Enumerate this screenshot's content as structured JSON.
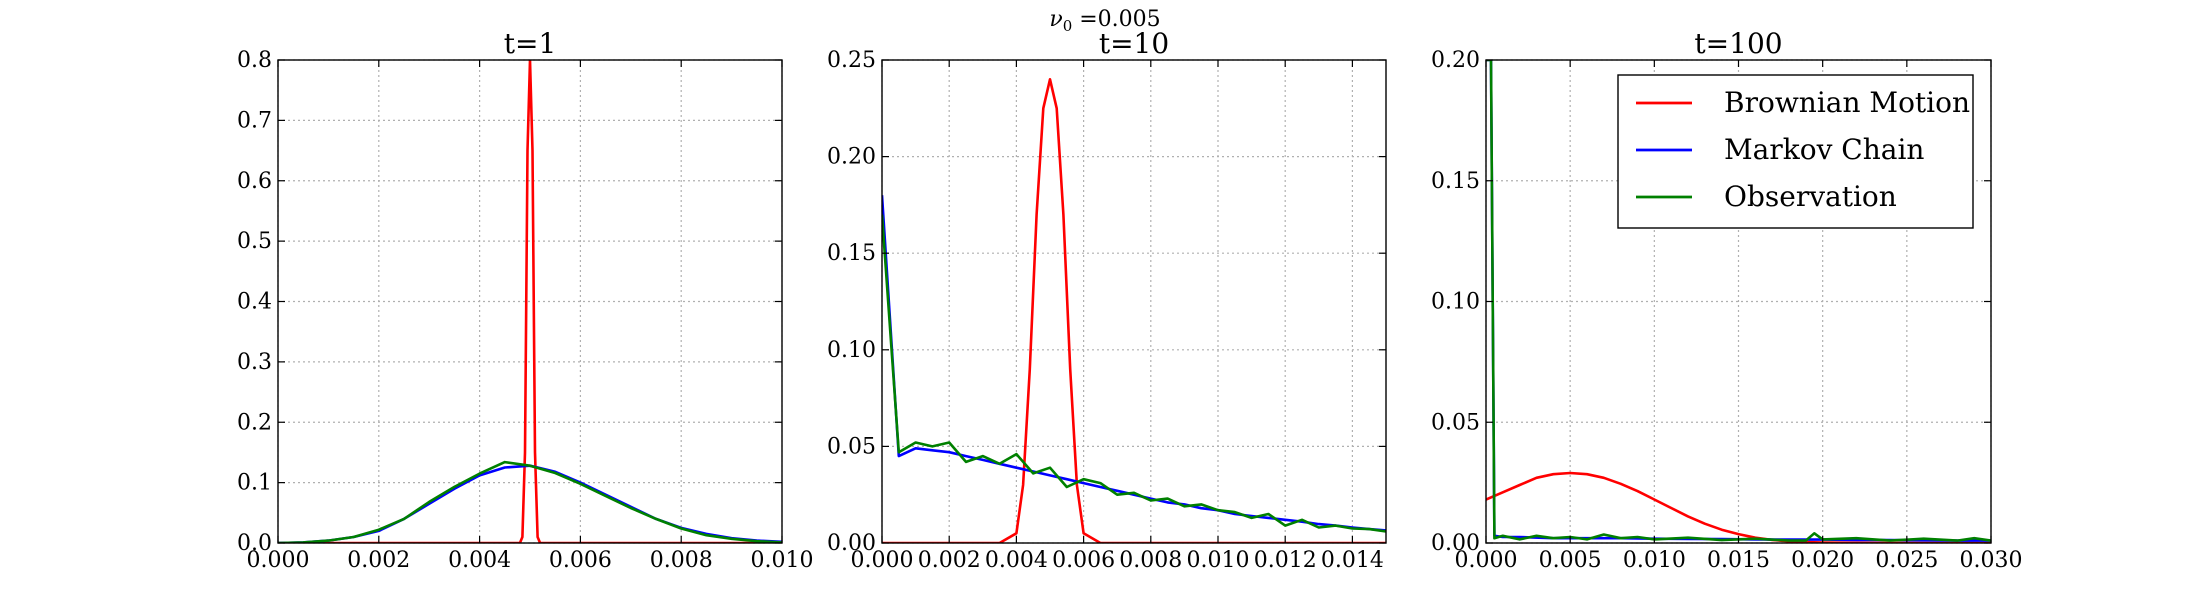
{
  "figure": {
    "suptitle_symbol": "ν",
    "suptitle_subscript": "0",
    "suptitle_value": " =0.005"
  },
  "legend": {
    "placement": "top-right of third panel"
  },
  "chart_data": [
    {
      "type": "line",
      "title": "t=1",
      "xlim": [
        0.0,
        0.01
      ],
      "ylim": [
        0.0,
        0.8
      ],
      "x_ticks": [
        "0.000",
        "0.002",
        "0.004",
        "0.006",
        "0.008",
        "0.010"
      ],
      "y_ticks": [
        "0.0",
        "0.1",
        "0.2",
        "0.3",
        "0.4",
        "0.5",
        "0.6",
        "0.7",
        "0.8"
      ],
      "grid": true,
      "series": [
        {
          "name": "Brownian Motion",
          "color": "#ff0000",
          "x": [
            0.0,
            0.0048,
            0.00485,
            0.0049,
            0.00495,
            0.005,
            0.00505,
            0.0051,
            0.00515,
            0.0052,
            0.01
          ],
          "y": [
            0.0,
            0.0,
            0.01,
            0.15,
            0.65,
            0.8,
            0.65,
            0.15,
            0.01,
            0.0,
            0.0
          ]
        },
        {
          "name": "Markov Chain",
          "color": "#0000ff",
          "x": [
            0.0,
            0.0005,
            0.001,
            0.0015,
            0.002,
            0.0025,
            0.003,
            0.0035,
            0.004,
            0.0045,
            0.005,
            0.0055,
            0.006,
            0.0065,
            0.007,
            0.0075,
            0.008,
            0.0085,
            0.009,
            0.0095,
            0.01
          ],
          "y": [
            0.0,
            0.001,
            0.004,
            0.01,
            0.02,
            0.04,
            0.065,
            0.09,
            0.112,
            0.125,
            0.128,
            0.118,
            0.1,
            0.08,
            0.06,
            0.04,
            0.025,
            0.015,
            0.008,
            0.004,
            0.002
          ]
        },
        {
          "name": "Observation",
          "color": "#008000",
          "x": [
            0.0,
            0.0005,
            0.001,
            0.0015,
            0.002,
            0.0025,
            0.003,
            0.0035,
            0.004,
            0.0045,
            0.005,
            0.0055,
            0.006,
            0.0065,
            0.007,
            0.0075,
            0.008,
            0.0085,
            0.009,
            0.0095,
            0.01
          ],
          "y": [
            0.0,
            0.001,
            0.004,
            0.01,
            0.022,
            0.04,
            0.068,
            0.093,
            0.115,
            0.134,
            0.128,
            0.116,
            0.098,
            0.078,
            0.058,
            0.04,
            0.024,
            0.013,
            0.007,
            0.003,
            0.001
          ]
        }
      ]
    },
    {
      "type": "line",
      "title": "t=10",
      "xlim": [
        0.0,
        0.015
      ],
      "ylim": [
        0.0,
        0.25
      ],
      "x_ticks": [
        "0.000",
        "0.002",
        "0.004",
        "0.006",
        "0.008",
        "0.010",
        "0.012",
        "0.014"
      ],
      "y_ticks": [
        "0.00",
        "0.05",
        "0.10",
        "0.15",
        "0.20",
        "0.25"
      ],
      "grid": true,
      "series": [
        {
          "name": "Brownian Motion",
          "color": "#ff0000",
          "x": [
            0.0,
            0.0035,
            0.004,
            0.0042,
            0.0044,
            0.0046,
            0.0048,
            0.005,
            0.0052,
            0.0054,
            0.0056,
            0.0058,
            0.006,
            0.0065,
            0.015
          ],
          "y": [
            0.0,
            0.0,
            0.005,
            0.03,
            0.09,
            0.17,
            0.225,
            0.24,
            0.225,
            0.17,
            0.09,
            0.03,
            0.005,
            0.0,
            0.0
          ]
        },
        {
          "name": "Markov Chain",
          "color": "#0000ff",
          "x": [
            0.0,
            0.0005,
            0.001,
            0.0015,
            0.002,
            0.0025,
            0.003,
            0.0035,
            0.004,
            0.0045,
            0.005,
            0.0055,
            0.006,
            0.0065,
            0.007,
            0.0075,
            0.008,
            0.0085,
            0.009,
            0.0095,
            0.01,
            0.0105,
            0.011,
            0.0115,
            0.012,
            0.0125,
            0.013,
            0.0135,
            0.014,
            0.0145,
            0.015
          ],
          "y": [
            0.18,
            0.045,
            0.049,
            0.048,
            0.047,
            0.045,
            0.043,
            0.041,
            0.039,
            0.037,
            0.035,
            0.033,
            0.031,
            0.029,
            0.027,
            0.025,
            0.023,
            0.021,
            0.02,
            0.018,
            0.017,
            0.015,
            0.014,
            0.013,
            0.012,
            0.011,
            0.0098,
            0.009,
            0.008,
            0.0072,
            0.0065
          ]
        },
        {
          "name": "Observation",
          "color": "#008000",
          "x": [
            0.0,
            0.0005,
            0.001,
            0.0015,
            0.002,
            0.0025,
            0.003,
            0.0035,
            0.004,
            0.0045,
            0.005,
            0.0055,
            0.006,
            0.0065,
            0.007,
            0.0075,
            0.008,
            0.0085,
            0.009,
            0.0095,
            0.01,
            0.0105,
            0.011,
            0.0115,
            0.012,
            0.0125,
            0.013,
            0.0135,
            0.014,
            0.0145,
            0.015
          ],
          "y": [
            0.17,
            0.047,
            0.052,
            0.05,
            0.052,
            0.042,
            0.045,
            0.041,
            0.046,
            0.036,
            0.039,
            0.029,
            0.033,
            0.031,
            0.025,
            0.026,
            0.022,
            0.023,
            0.019,
            0.02,
            0.017,
            0.016,
            0.013,
            0.015,
            0.009,
            0.012,
            0.008,
            0.009,
            0.0075,
            0.0072,
            0.006
          ]
        }
      ]
    },
    {
      "type": "line",
      "title": "t=100",
      "xlim": [
        0.0,
        0.03
      ],
      "ylim": [
        0.0,
        0.2
      ],
      "x_ticks": [
        "0.000",
        "0.005",
        "0.010",
        "0.015",
        "0.020",
        "0.025",
        "0.030"
      ],
      "y_ticks": [
        "0.00",
        "0.05",
        "0.10",
        "0.15",
        "0.20"
      ],
      "grid": true,
      "series": [
        {
          "name": "Brownian Motion",
          "color": "#ff0000",
          "x": [
            0.0,
            0.001,
            0.002,
            0.003,
            0.004,
            0.005,
            0.006,
            0.007,
            0.008,
            0.009,
            0.01,
            0.011,
            0.012,
            0.013,
            0.014,
            0.015,
            0.016,
            0.017,
            0.018,
            0.019,
            0.02,
            0.022,
            0.024,
            0.026,
            0.028,
            0.03
          ],
          "y": [
            0.018,
            0.021,
            0.024,
            0.027,
            0.0285,
            0.029,
            0.0285,
            0.027,
            0.0245,
            0.0215,
            0.018,
            0.0145,
            0.011,
            0.008,
            0.0055,
            0.0037,
            0.0022,
            0.0013,
            0.0007,
            0.0004,
            0.0002,
            0.0001,
            0.0,
            0.0,
            0.0,
            0.0
          ]
        },
        {
          "name": "Markov Chain",
          "color": "#0000ff",
          "x": [
            0.0,
            0.0003,
            0.0005,
            0.001,
            0.002,
            0.004,
            0.006,
            0.008,
            0.01,
            0.012,
            0.014,
            0.016,
            0.018,
            0.02,
            0.022,
            0.024,
            0.026,
            0.028,
            0.03
          ],
          "y": [
            0.2,
            0.2,
            0.003,
            0.0025,
            0.0025,
            0.002,
            0.002,
            0.002,
            0.0018,
            0.0017,
            0.0016,
            0.0015,
            0.0014,
            0.0014,
            0.0013,
            0.0012,
            0.0011,
            0.001,
            0.001
          ]
        },
        {
          "name": "Observation",
          "color": "#008000",
          "x": [
            0.0,
            0.0003,
            0.0005,
            0.001,
            0.002,
            0.003,
            0.004,
            0.005,
            0.006,
            0.007,
            0.008,
            0.009,
            0.01,
            0.012,
            0.014,
            0.016,
            0.018,
            0.019,
            0.0195,
            0.02,
            0.022,
            0.024,
            0.026,
            0.028,
            0.029,
            0.03
          ],
          "y": [
            0.2,
            0.2,
            0.002,
            0.003,
            0.0015,
            0.003,
            0.002,
            0.0025,
            0.0015,
            0.0035,
            0.002,
            0.0025,
            0.0015,
            0.0022,
            0.0012,
            0.0018,
            0.001,
            0.001,
            0.004,
            0.0015,
            0.002,
            0.001,
            0.0018,
            0.001,
            0.002,
            0.001
          ]
        }
      ]
    }
  ]
}
